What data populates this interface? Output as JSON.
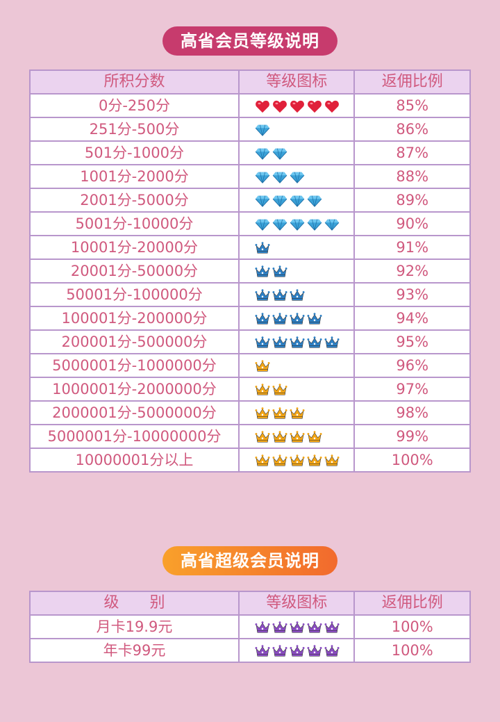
{
  "section1": {
    "title": "高省会员等级说明",
    "headers": [
      "所积分数",
      "等级图标",
      "返佣比例"
    ],
    "rows": [
      {
        "range": "0分-250分",
        "icon": "heart-icon",
        "count": 5,
        "rate": "85%"
      },
      {
        "range": "251分-500分",
        "icon": "diamond-icon",
        "count": 1,
        "rate": "86%"
      },
      {
        "range": "501分-1000分",
        "icon": "diamond-icon",
        "count": 2,
        "rate": "87%"
      },
      {
        "range": "1001分-2000分",
        "icon": "diamond-icon",
        "count": 3,
        "rate": "88%"
      },
      {
        "range": "2001分-5000分",
        "icon": "diamond-icon",
        "count": 4,
        "rate": "89%"
      },
      {
        "range": "5001分-10000分",
        "icon": "diamond-icon",
        "count": 5,
        "rate": "90%"
      },
      {
        "range": "10001分-20000分",
        "icon": "blue-crown-icon",
        "count": 1,
        "rate": "91%"
      },
      {
        "range": "20001分-50000分",
        "icon": "blue-crown-icon",
        "count": 2,
        "rate": "92%"
      },
      {
        "range": "50001分-100000分",
        "icon": "blue-crown-icon",
        "count": 3,
        "rate": "93%"
      },
      {
        "range": "100001分-200000分",
        "icon": "blue-crown-icon",
        "count": 4,
        "rate": "94%"
      },
      {
        "range": "200001分-500000分",
        "icon": "blue-crown-icon",
        "count": 5,
        "rate": "95%"
      },
      {
        "range": "5000001分-1000000分",
        "icon": "gold-crown-icon",
        "count": 1,
        "rate": "96%"
      },
      {
        "range": "1000001分-2000000分",
        "icon": "gold-crown-icon",
        "count": 2,
        "rate": "97%"
      },
      {
        "range": "2000001分-5000000分",
        "icon": "gold-crown-icon",
        "count": 3,
        "rate": "98%"
      },
      {
        "range": "5000001分-10000000分",
        "icon": "gold-crown-icon",
        "count": 4,
        "rate": "99%"
      },
      {
        "range": "10000001分以上",
        "icon": "gold-crown-icon",
        "count": 5,
        "rate": "100%"
      }
    ]
  },
  "section2": {
    "title": "高省超级会员说明",
    "headers": [
      "级　　别",
      "等级图标",
      "返佣比例"
    ],
    "rows": [
      {
        "range": "月卡19.9元",
        "icon": "purple-crown-icon",
        "count": 5,
        "rate": "100%"
      },
      {
        "range": "年卡99元",
        "icon": "purple-crown-icon",
        "count": 5,
        "rate": "100%"
      }
    ]
  },
  "colors": {
    "background": "#ecc6d6",
    "title1_bg": "#c73b6d",
    "title2_bg_start": "#f9a02b",
    "title2_bg_end": "#f26a2d",
    "text": "#d0597e",
    "header_bg": "#ebd3ef",
    "border": "#b896cc",
    "heart": "#e0203a",
    "diamond": "#3ba2d8",
    "blue_crown": "#2c7fc4",
    "gold_crown": "#f2a516",
    "purple_crown": "#8a4cc2"
  }
}
